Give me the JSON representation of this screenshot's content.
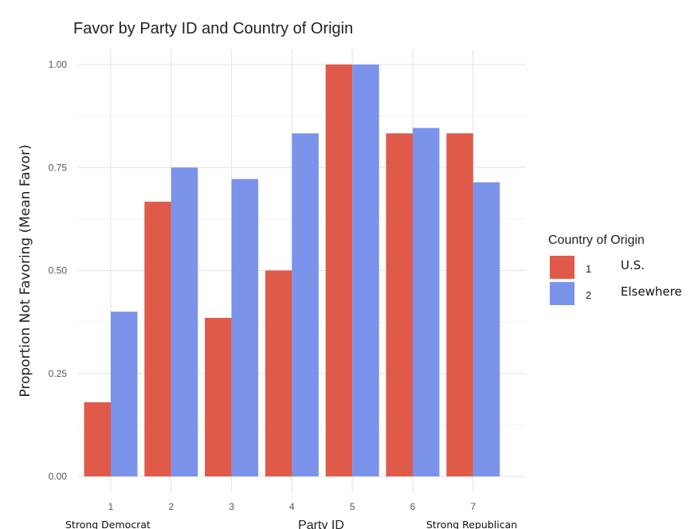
{
  "chart_data": {
    "type": "bar",
    "title": "Favor by Party ID and Country of Origin",
    "xlabel": "Party ID",
    "ylabel": "Proportion Not Favoring (Mean Favor)",
    "categories": [
      "1",
      "2",
      "3",
      "4",
      "5",
      "6",
      "7"
    ],
    "x_end_labels": {
      "left": "Strong Democrat",
      "right": "Strong Republican"
    },
    "ylim": [
      0,
      1
    ],
    "y_ticks": [
      "0.00",
      "0.25",
      "0.50",
      "0.75",
      "1.00"
    ],
    "grid": true,
    "legend": {
      "title": "Country of Origin",
      "placement": "right",
      "entries": [
        {
          "key": "1",
          "description": "U.S."
        },
        {
          "key": "2",
          "description": "Elsewhere"
        }
      ]
    },
    "series": [
      {
        "name": "1",
        "color": "#e05a4a",
        "values": [
          0.18,
          0.667,
          0.385,
          0.5,
          1.0,
          0.833,
          0.833
        ]
      },
      {
        "name": "2",
        "color": "#7b93ea",
        "values": [
          0.4,
          0.75,
          0.722,
          0.833,
          1.0,
          0.846,
          0.714
        ]
      }
    ]
  }
}
